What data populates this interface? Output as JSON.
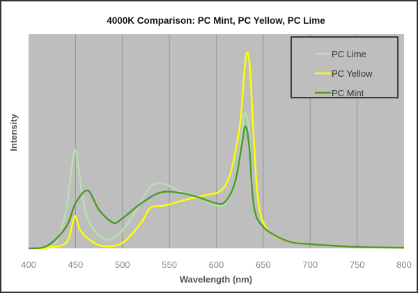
{
  "chart_data": {
    "type": "line",
    "title": "4000K Comparison: PC Mint, PC Yellow, PC Lime",
    "xlabel": "Wavelength (nm)",
    "ylabel": "Intensity",
    "xlim": [
      400,
      800
    ],
    "ylim": [
      0,
      1
    ],
    "x_ticks": [
      "400",
      "450",
      "500",
      "550",
      "600",
      "650",
      "700",
      "750",
      "800"
    ],
    "y_ticks_shown": false,
    "grid": "vertical",
    "legend": "top-right",
    "plot_background": "#bebebe",
    "series": [
      {
        "name": "PC Lime",
        "color": "#b8dfae",
        "x": [
          400,
          420,
          430,
          440,
          447,
          450,
          453,
          460,
          470,
          485,
          500,
          515,
          530,
          545,
          560,
          580,
          600,
          610,
          620,
          628,
          631,
          635,
          640,
          650,
          675,
          700,
          750,
          800
        ],
        "y": [
          0,
          0.01,
          0.035,
          0.18,
          0.41,
          0.46,
          0.38,
          0.18,
          0.085,
          0.04,
          0.085,
          0.18,
          0.29,
          0.3,
          0.27,
          0.24,
          0.2,
          0.21,
          0.31,
          0.57,
          0.63,
          0.54,
          0.21,
          0.1,
          0.035,
          0.02,
          0.007,
          0.003
        ]
      },
      {
        "name": "PC Yellow",
        "color": "#ffff00",
        "x": [
          400,
          420,
          440,
          447,
          450,
          455,
          465,
          480,
          500,
          520,
          530,
          545,
          570,
          590,
          605,
          615,
          625,
          630,
          633,
          636,
          640,
          645,
          655,
          675,
          700,
          750,
          800
        ],
        "y": [
          0,
          0.003,
          0.026,
          0.12,
          0.15,
          0.085,
          0.04,
          0.01,
          0.026,
          0.12,
          0.19,
          0.2,
          0.23,
          0.25,
          0.27,
          0.35,
          0.57,
          0.83,
          0.915,
          0.83,
          0.51,
          0.21,
          0.085,
          0.035,
          0.02,
          0.007,
          0.003
        ]
      },
      {
        "name": "PC Mint",
        "color": "#4e9a2e",
        "x": [
          400,
          420,
          440,
          450,
          463,
          475,
          490,
          500,
          520,
          540,
          560,
          580,
          600,
          610,
          620,
          627,
          631,
          635,
          640,
          650,
          675,
          700,
          750,
          800
        ],
        "y": [
          0,
          0.012,
          0.1,
          0.21,
          0.27,
          0.18,
          0.12,
          0.14,
          0.21,
          0.26,
          0.26,
          0.24,
          0.21,
          0.22,
          0.31,
          0.48,
          0.57,
          0.48,
          0.2,
          0.1,
          0.035,
          0.02,
          0.007,
          0.003
        ]
      }
    ]
  }
}
